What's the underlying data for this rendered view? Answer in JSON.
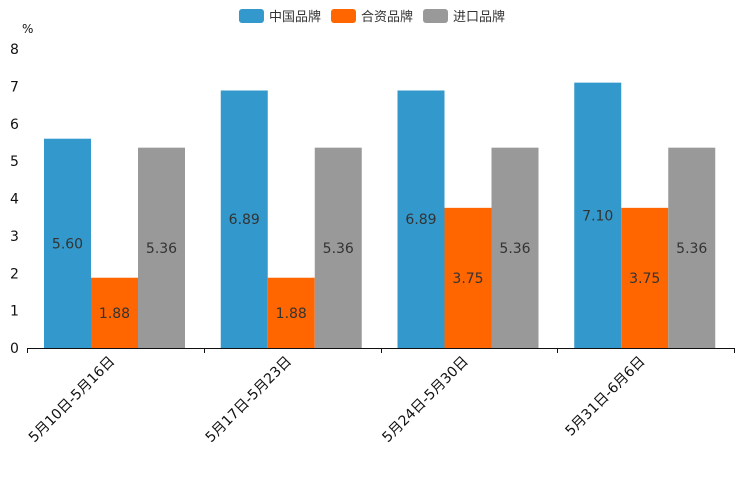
{
  "chart_data": {
    "type": "bar",
    "title": "",
    "unit": "%",
    "xlabel": "",
    "ylabel": "",
    "ylim": [
      0,
      8
    ],
    "yticks": [
      "0",
      "1",
      "2",
      "3",
      "4",
      "5",
      "6",
      "7",
      "8"
    ],
    "grid": false,
    "legend_position": "top-center",
    "categories": [
      "5月10日-5月16日",
      "5月17日-5月23日",
      "5月24日-5月30日",
      "5月31日-6月6日"
    ],
    "series": [
      {
        "name": "中国品牌",
        "color": "#3399cc",
        "values": [
          5.6,
          6.89,
          6.89,
          7.1
        ],
        "labels": [
          "5.60",
          "6.89",
          "6.89",
          "7.10"
        ]
      },
      {
        "name": "合资品牌",
        "color": "#ff6600",
        "values": [
          1.88,
          1.88,
          3.75,
          3.75
        ],
        "labels": [
          "1.88",
          "1.88",
          "3.75",
          "3.75"
        ]
      },
      {
        "name": "进口品牌",
        "color": "#999999",
        "values": [
          5.36,
          5.36,
          5.36,
          5.36
        ],
        "labels": [
          "5.36",
          "5.36",
          "5.36",
          "5.36"
        ]
      }
    ]
  }
}
